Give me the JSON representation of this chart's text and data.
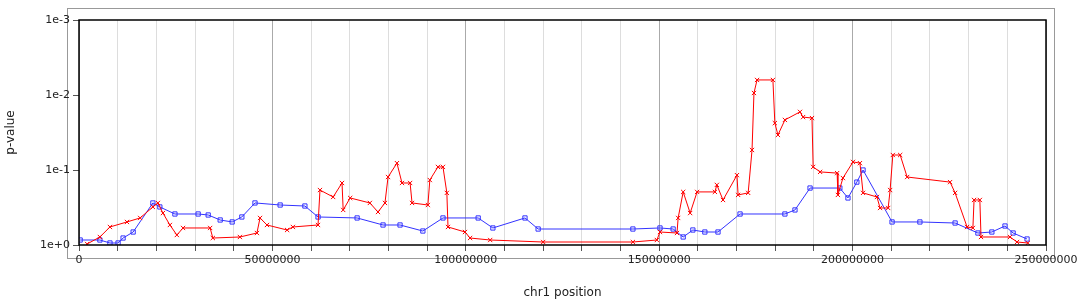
{
  "chart_data": {
    "type": "line",
    "xlabel": "chr1 position",
    "ylabel": "p-value",
    "log": "y",
    "grid": "x",
    "line_style": "solid",
    "xlim": [
      0,
      250000000
    ],
    "xticks": [
      0,
      {
        "value": 10000000,
        "label": null
      },
      {
        "value": 20000000,
        "label": null
      },
      {
        "value": 30000000,
        "label": null
      },
      {
        "value": 40000000,
        "label": null
      },
      50000000,
      {
        "value": 60000000,
        "label": null
      },
      {
        "value": 70000000,
        "label": null
      },
      {
        "value": 80000000,
        "label": null
      },
      {
        "value": 90000000,
        "label": null
      },
      100000000,
      {
        "value": 110000000,
        "label": null
      },
      {
        "value": 120000000,
        "label": null
      },
      {
        "value": 130000000,
        "label": null
      },
      {
        "value": 140000000,
        "label": null
      },
      150000000,
      {
        "value": 160000000,
        "label": null
      },
      {
        "value": 170000000,
        "label": null
      },
      {
        "value": 180000000,
        "label": null
      },
      {
        "value": 190000000,
        "label": null
      },
      200000000,
      {
        "value": 210000000,
        "label": null
      },
      {
        "value": 220000000,
        "label": null
      },
      {
        "value": 230000000,
        "label": null
      },
      {
        "value": 240000000,
        "label": null
      },
      250000000
    ],
    "ylim": [
      1,
      0.001
    ],
    "yticks": [
      {
        "value": 1,
        "label": "1e+0"
      },
      {
        "value": 0.1,
        "label": "1e-1"
      },
      {
        "value": 0.01,
        "label": "1e-2"
      },
      {
        "value": 0.001,
        "label": "1e-3"
      }
    ],
    "series": [
      {
        "color": "#ff0000",
        "marker": "cross",
        "x": [
          2100000,
          5400000,
          8000000,
          12400000,
          15800000,
          19100000,
          20400000,
          21700000,
          23500000,
          25300000,
          26900000,
          33900000,
          34600000,
          41600000,
          46000000,
          46800000,
          48600000,
          53800000,
          55300000,
          61800000,
          62300000,
          65700000,
          68000000,
          68300000,
          70100000,
          75200000,
          77300000,
          79100000,
          79900000,
          82200000,
          83500000,
          85600000,
          86100000,
          90200000,
          90700000,
          92800000,
          94100000,
          95100000,
          95400000,
          99800000,
          101100000,
          106300000,
          120000000,
          143200000,
          149400000,
          150200000,
          154600000,
          154900000,
          156200000,
          158000000,
          159800000,
          164400000,
          164900000,
          166500000,
          170100000,
          170400000,
          173000000,
          174000000,
          174500000,
          175300000,
          179400000,
          179900000,
          180700000,
          182500000,
          186400000,
          187200000,
          189500000,
          189800000,
          191600000,
          196000000,
          196200000,
          197500000,
          200100000,
          201900000,
          202700000,
          206300000,
          207100000,
          209200000,
          209700000,
          210400000,
          212300000,
          214100000,
          225200000,
          226500000,
          229600000,
          231100000,
          231400000,
          232900000,
          233200000,
          240700000,
          242500000,
          245300000
        ],
        "values": [
          0.97,
          0.782,
          0.575,
          0.493,
          0.436,
          0.311,
          0.275,
          0.375,
          0.541,
          0.736,
          0.593,
          0.593,
          0.807,
          0.782,
          0.692,
          0.436,
          0.541,
          0.631,
          0.575,
          0.541,
          0.185,
          0.229,
          0.149,
          0.341,
          0.236,
          0.275,
          0.363,
          0.275,
          0.124,
          0.081,
          0.149,
          0.149,
          0.275,
          0.293,
          0.136,
          0.091,
          0.091,
          0.202,
          0.575,
          0.671,
          0.807,
          0.858,
          0.912,
          0.912,
          0.858,
          0.671,
          0.692,
          0.436,
          0.196,
          0.375,
          0.196,
          0.196,
          0.158,
          0.251,
          0.117,
          0.215,
          0.202,
          0.0541,
          0.0094,
          0.0063,
          0.0063,
          0.0237,
          0.0341,
          0.0215,
          0.0168,
          0.0197,
          0.0203,
          0.091,
          0.106,
          0.11,
          0.215,
          0.128,
          0.078,
          0.081,
          0.202,
          0.229,
          0.321,
          0.321,
          0.185,
          0.0631,
          0.0631,
          0.124,
          0.145,
          0.202,
          0.575,
          0.593,
          0.251,
          0.251,
          0.782,
          0.782,
          0.912,
          0.94
        ]
      },
      {
        "color": "#3333ff",
        "marker": "square",
        "x": [
          300000,
          5400000,
          8000000,
          10100000,
          11400000,
          14000000,
          19100000,
          20900000,
          24800000,
          30800000,
          33400000,
          36500000,
          39600000,
          42100000,
          45500000,
          52000000,
          58400000,
          61800000,
          71900000,
          78600000,
          83000000,
          88900000,
          94100000,
          103200000,
          107000000,
          115300000,
          118700000,
          143200000,
          150200000,
          153600000,
          156200000,
          158700000,
          161800000,
          165200000,
          170900000,
          182500000,
          185100000,
          189000000,
          196700000,
          198800000,
          201100000,
          202700000,
          210200000,
          217400000,
          226500000,
          232400000,
          236000000,
          239400000,
          241500000,
          245100000
        ],
        "values": [
          0.858,
          0.858,
          0.94,
          0.94,
          0.807,
          0.671,
          0.275,
          0.311,
          0.386,
          0.386,
          0.398,
          0.464,
          0.493,
          0.423,
          0.275,
          0.293,
          0.302,
          0.423,
          0.436,
          0.541,
          0.541,
          0.651,
          0.436,
          0.436,
          0.593,
          0.436,
          0.612,
          0.612,
          0.593,
          0.612,
          0.782,
          0.631,
          0.671,
          0.671,
          0.386,
          0.386,
          0.341,
          0.174,
          0.174,
          0.236,
          0.145,
          0.1,
          0.493,
          0.493,
          0.509,
          0.692,
          0.671,
          0.558,
          0.692,
          0.832
        ]
      }
    ]
  }
}
